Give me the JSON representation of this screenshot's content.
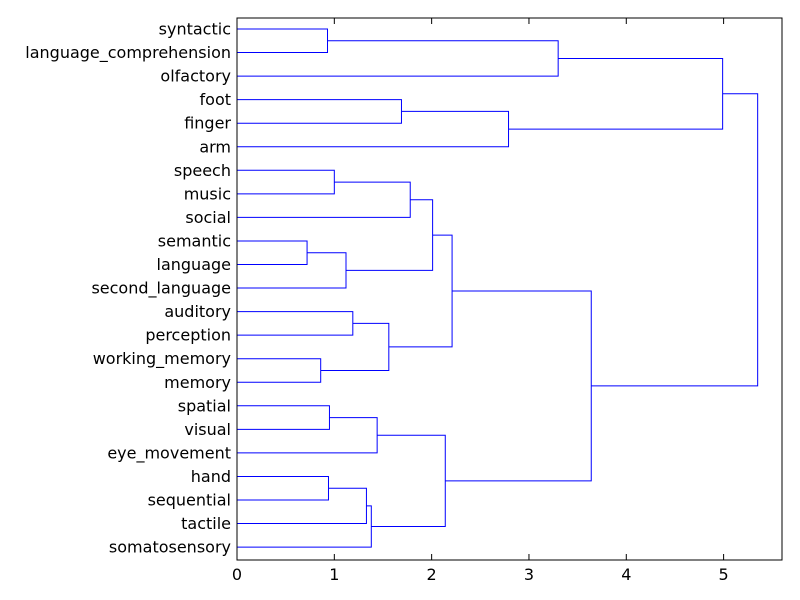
{
  "chart_data": {
    "type": "dendrogram",
    "orientation": "horizontal",
    "title": "",
    "xlabel": "",
    "ylabel": "",
    "xlim": [
      0,
      5.6
    ],
    "xticks": [
      0,
      1,
      2,
      3,
      4,
      5
    ],
    "grid": false,
    "link_color": "#0000ff",
    "leaves": [
      "syntactic",
      "language_comprehension",
      "olfactory",
      "foot",
      "finger",
      "arm",
      "speech",
      "music",
      "social",
      "semantic",
      "language",
      "second_language",
      "auditory",
      "perception",
      "working_memory",
      "memory",
      "spatial",
      "visual",
      "eye_movement",
      "hand",
      "sequential",
      "tactile",
      "somatosensory"
    ],
    "merges": [
      {
        "left": "syntactic",
        "right": "language_comprehension",
        "height": 0.93
      },
      {
        "left": "syntactic+language_comprehension",
        "right": "olfactory",
        "height": 3.3
      },
      {
        "left": "foot",
        "right": "finger",
        "height": 1.69
      },
      {
        "left": "foot+finger",
        "right": "arm",
        "height": 2.79
      },
      {
        "left": "speech",
        "right": "music",
        "height": 1.0
      },
      {
        "left": "speech+music",
        "right": "social",
        "height": 1.78
      },
      {
        "left": "semantic",
        "right": "language",
        "height": 0.72
      },
      {
        "left": "semantic+language",
        "right": "second_language",
        "height": 1.12
      },
      {
        "left": "speech+music+social",
        "right": "semantic+language+second_language",
        "height": 2.01
      },
      {
        "left": "auditory",
        "right": "perception",
        "height": 1.19
      },
      {
        "left": "working_memory",
        "right": "memory",
        "height": 0.86
      },
      {
        "left": "auditory+perception",
        "right": "working_memory+memory",
        "height": 1.56
      },
      {
        "left": "speech..second_language",
        "right": "auditory..memory",
        "height": 2.21
      },
      {
        "left": "spatial",
        "right": "visual",
        "height": 0.95
      },
      {
        "left": "spatial+visual",
        "right": "eye_movement",
        "height": 1.44
      },
      {
        "left": "hand",
        "right": "sequential",
        "height": 0.94
      },
      {
        "left": "hand+sequential",
        "right": "tactile",
        "height": 1.33
      },
      {
        "left": "hand+sequential+tactile",
        "right": "somatosensory",
        "height": 1.38
      },
      {
        "left": "spatial+visual+eye_movement",
        "right": "hand..somatosensory",
        "height": 2.14
      },
      {
        "left": "speech..memory",
        "right": "spatial..somatosensory",
        "height": 3.64
      },
      {
        "left": "syntactic..olfactory",
        "right": "foot..arm",
        "height": 4.99
      },
      {
        "left": "syntactic..arm",
        "right": "speech..somatosensory",
        "height": 5.35
      }
    ]
  }
}
